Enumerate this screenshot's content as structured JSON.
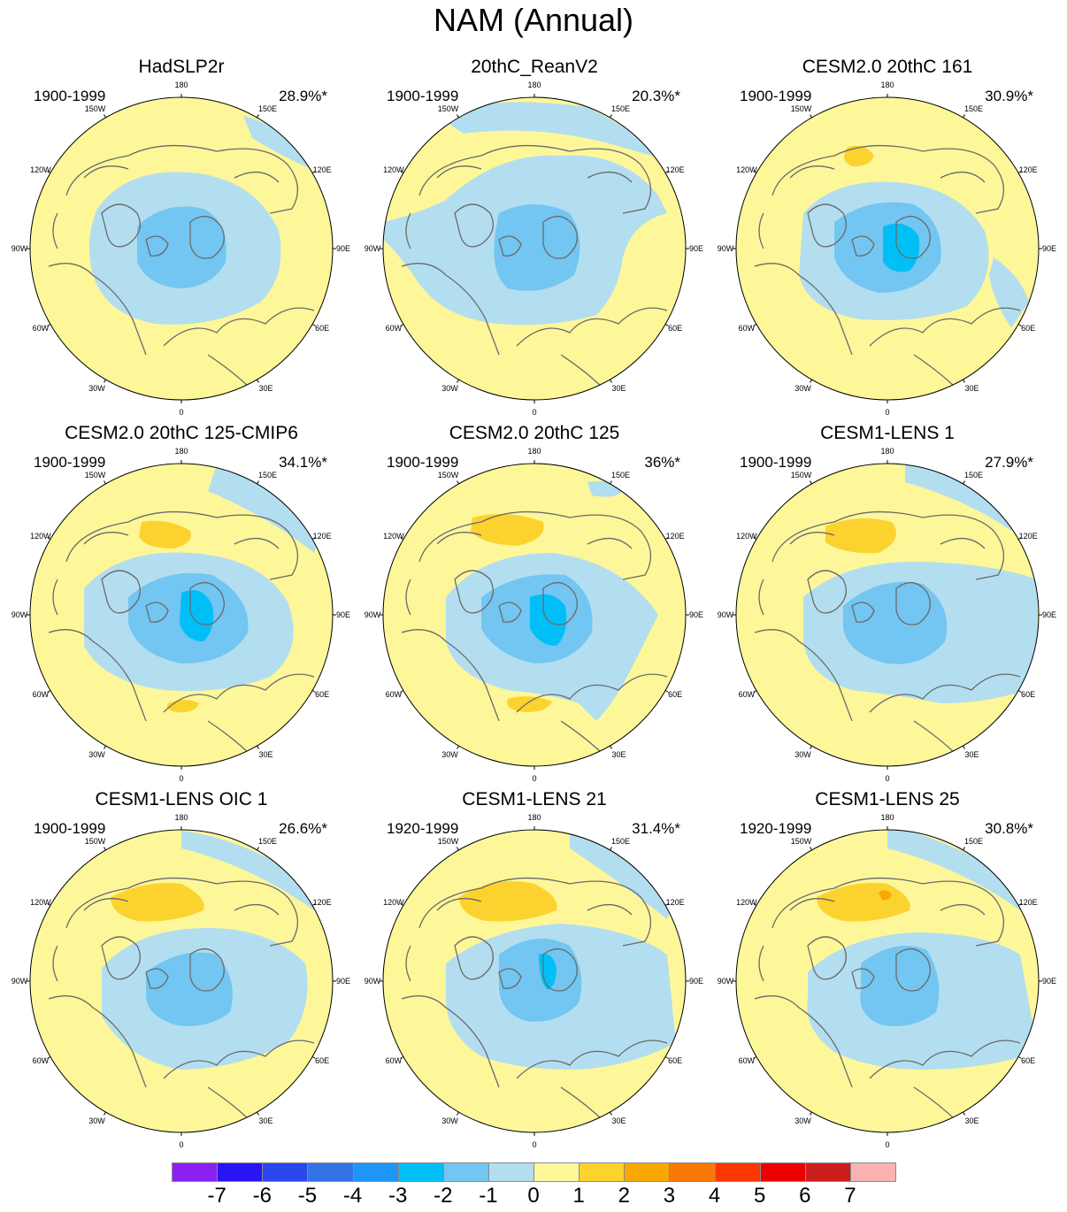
{
  "title": "NAM (Annual)",
  "colors": {
    "ocean": "#fdf79a",
    "neg1": "#b3def0",
    "neg2": "#72c6f1",
    "neg3": "#00bff7",
    "pos1": "#fcd32e",
    "pos2": "#f8a801",
    "coast": "#6a6a6a"
  },
  "longitude_labels": [
    "180",
    "150E",
    "120E",
    "90E",
    "60E",
    "30E",
    "0",
    "30W",
    "60W",
    "90W",
    "120W",
    "150W"
  ],
  "panels": [
    {
      "name": "HadSLP2r",
      "period": "1900-1999",
      "percent": "28.9%*",
      "max_neg": 2,
      "max_pos": 0
    },
    {
      "name": "20thC_ReanV2",
      "period": "1900-1999",
      "percent": "20.3%*",
      "max_neg": 2,
      "max_pos": 0
    },
    {
      "name": "CESM2.0 20thC 161",
      "period": "1900-1999",
      "percent": "30.9%*",
      "max_neg": 3,
      "max_pos": 1
    },
    {
      "name": "CESM2.0 20thC 125-CMIP6",
      "period": "1900-1999",
      "percent": "34.1%*",
      "max_neg": 3,
      "max_pos": 1
    },
    {
      "name": "CESM2.0 20thC 125",
      "period": "1900-1999",
      "percent": "36%*",
      "max_neg": 3,
      "max_pos": 1
    },
    {
      "name": "CESM1-LENS 1",
      "period": "1900-1999",
      "percent": "27.9%*",
      "max_neg": 2,
      "max_pos": 1
    },
    {
      "name": "CESM1-LENS OIC 1",
      "period": "1900-1999",
      "percent": "26.6%*",
      "max_neg": 2,
      "max_pos": 1
    },
    {
      "name": "CESM1-LENS 21",
      "period": "1920-1999",
      "percent": "31.4%*",
      "max_neg": 3,
      "max_pos": 1
    },
    {
      "name": "CESM1-LENS 25",
      "period": "1920-1999",
      "percent": "30.8%*",
      "max_neg": 3,
      "max_pos": 2
    }
  ],
  "colorbar": {
    "labels": [
      "-7",
      "-6",
      "-5",
      "-4",
      "-3",
      "-2",
      "-1",
      "0",
      "1",
      "2",
      "3",
      "4",
      "5",
      "6",
      "7"
    ],
    "colors": [
      "#8b21f0",
      "#2814f4",
      "#2a48ee",
      "#3473e6",
      "#1e96f8",
      "#00bff7",
      "#72c6f1",
      "#b3def0",
      "#fdf79a",
      "#fcd32e",
      "#f8a801",
      "#fa7906",
      "#fb3700",
      "#eb0200",
      "#cd1e1e",
      "#f9b3b3"
    ]
  }
}
